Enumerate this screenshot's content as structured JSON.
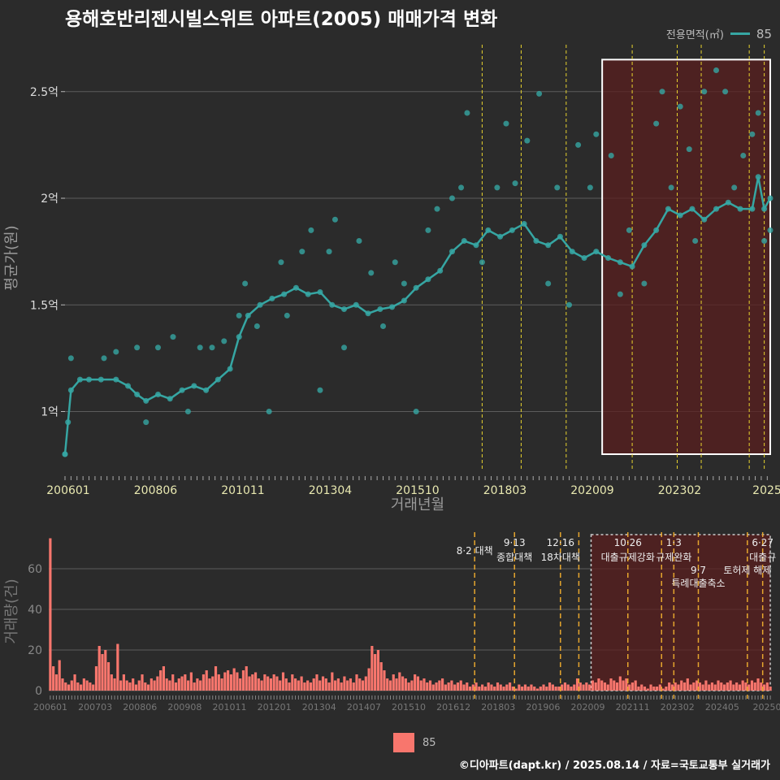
{
  "title": "용해호반리젠시빌스위트 아파트(2005) 매매가격 변화",
  "legend_top": {
    "label": "전용면적(㎡)",
    "value": "85"
  },
  "legend_bottom": {
    "value": "85"
  },
  "footer": "©디아파트(dapt.kr) / 2025.08.14 / 자료=국토교통부 실거래가",
  "colors": {
    "price": "#36a6a3",
    "volume": "#f8766d",
    "highlight": "#5a1f1f",
    "policy_line": "#e6d22e",
    "policy_line_bottom": "#e6a62e"
  },
  "chart_data": [
    {
      "type": "line",
      "title": "",
      "xlabel": "거래년월",
      "ylabel": "평균가(원)",
      "x_tick_labels": [
        "200601",
        "200806",
        "201011",
        "201304",
        "201510",
        "201803",
        "202009",
        "202302",
        "2025"
      ],
      "y_ticks": [
        {
          "v": 1.0,
          "label": "1억"
        },
        {
          "v": 1.5,
          "label": "1.5억"
        },
        {
          "v": 2.0,
          "label": "2억"
        },
        {
          "v": 2.5,
          "label": "2.5억"
        }
      ],
      "ylim": [
        0.72,
        2.72
      ],
      "x_range": [
        "2006-01",
        "2025-08"
      ],
      "highlight_range": {
        "from": "2020-12",
        "to": "2025-08",
        "ylim": [
          0.8,
          2.65
        ]
      },
      "policy_lines": [
        "2017-08",
        "2018-09",
        "2019-12",
        "2021-10",
        "2023-01",
        "2023-09",
        "2025-01",
        "2025-06"
      ],
      "series": [
        {
          "name": "85",
          "points": [
            [
              "2006-01",
              0.8
            ],
            [
              "2006-02",
              0.95
            ],
            [
              "2006-03",
              1.1
            ],
            [
              "2006-06",
              1.15
            ],
            [
              "2006-09",
              1.15
            ],
            [
              "2007-01",
              1.15
            ],
            [
              "2007-06",
              1.15
            ],
            [
              "2007-10",
              1.12
            ],
            [
              "2008-01",
              1.08
            ],
            [
              "2008-04",
              1.05
            ],
            [
              "2008-08",
              1.08
            ],
            [
              "2008-12",
              1.06
            ],
            [
              "2009-04",
              1.1
            ],
            [
              "2009-08",
              1.12
            ],
            [
              "2009-12",
              1.1
            ],
            [
              "2010-04",
              1.15
            ],
            [
              "2010-08",
              1.2
            ],
            [
              "2010-11",
              1.35
            ],
            [
              "2011-02",
              1.45
            ],
            [
              "2011-06",
              1.5
            ],
            [
              "2011-10",
              1.53
            ],
            [
              "2012-02",
              1.55
            ],
            [
              "2012-06",
              1.58
            ],
            [
              "2012-10",
              1.55
            ],
            [
              "2013-02",
              1.56
            ],
            [
              "2013-06",
              1.5
            ],
            [
              "2013-10",
              1.48
            ],
            [
              "2014-02",
              1.5
            ],
            [
              "2014-06",
              1.46
            ],
            [
              "2014-10",
              1.48
            ],
            [
              "2015-02",
              1.49
            ],
            [
              "2015-06",
              1.52
            ],
            [
              "2015-10",
              1.58
            ],
            [
              "2016-02",
              1.62
            ],
            [
              "2016-06",
              1.66
            ],
            [
              "2016-10",
              1.75
            ],
            [
              "2017-02",
              1.8
            ],
            [
              "2017-06",
              1.78
            ],
            [
              "2017-10",
              1.85
            ],
            [
              "2018-02",
              1.82
            ],
            [
              "2018-06",
              1.85
            ],
            [
              "2018-10",
              1.88
            ],
            [
              "2019-02",
              1.8
            ],
            [
              "2019-06",
              1.78
            ],
            [
              "2019-10",
              1.82
            ],
            [
              "2020-02",
              1.75
            ],
            [
              "2020-06",
              1.72
            ],
            [
              "2020-10",
              1.75
            ],
            [
              "2021-02",
              1.72
            ],
            [
              "2021-06",
              1.7
            ],
            [
              "2021-10",
              1.68
            ],
            [
              "2022-02",
              1.78
            ],
            [
              "2022-06",
              1.85
            ],
            [
              "2022-10",
              1.95
            ],
            [
              "2023-02",
              1.92
            ],
            [
              "2023-06",
              1.95
            ],
            [
              "2023-10",
              1.9
            ],
            [
              "2024-02",
              1.95
            ],
            [
              "2024-06",
              1.98
            ],
            [
              "2024-10",
              1.95
            ],
            [
              "2025-02",
              1.95
            ],
            [
              "2025-04",
              2.1
            ],
            [
              "2025-06",
              1.95
            ],
            [
              "2025-08",
              2.0
            ]
          ],
          "scatter_points": [
            [
              "2006-01",
              0.8
            ],
            [
              "2006-03",
              1.25
            ],
            [
              "2007-02",
              1.25
            ],
            [
              "2007-06",
              1.28
            ],
            [
              "2008-01",
              1.3
            ],
            [
              "2008-04",
              0.95
            ],
            [
              "2008-08",
              1.3
            ],
            [
              "2009-01",
              1.35
            ],
            [
              "2009-06",
              1.0
            ],
            [
              "2009-10",
              1.3
            ],
            [
              "2010-02",
              1.3
            ],
            [
              "2010-06",
              1.33
            ],
            [
              "2010-11",
              1.45
            ],
            [
              "2011-01",
              1.6
            ],
            [
              "2011-05",
              1.4
            ],
            [
              "2011-09",
              1.0
            ],
            [
              "2012-01",
              1.7
            ],
            [
              "2012-03",
              1.45
            ],
            [
              "2012-08",
              1.75
            ],
            [
              "2012-11",
              1.85
            ],
            [
              "2013-02",
              1.1
            ],
            [
              "2013-05",
              1.75
            ],
            [
              "2013-07",
              1.9
            ],
            [
              "2013-10",
              1.3
            ],
            [
              "2014-03",
              1.8
            ],
            [
              "2014-07",
              1.65
            ],
            [
              "2014-11",
              1.4
            ],
            [
              "2015-03",
              1.7
            ],
            [
              "2015-06",
              1.6
            ],
            [
              "2015-10",
              1.0
            ],
            [
              "2016-02",
              1.85
            ],
            [
              "2016-05",
              1.95
            ],
            [
              "2016-10",
              2.0
            ],
            [
              "2017-01",
              2.05
            ],
            [
              "2017-03",
              2.4
            ],
            [
              "2017-08",
              1.7
            ],
            [
              "2018-01",
              2.05
            ],
            [
              "2018-04",
              2.35
            ],
            [
              "2018-07",
              2.07
            ],
            [
              "2018-11",
              2.27
            ],
            [
              "2019-03",
              2.49
            ],
            [
              "2019-06",
              1.6
            ],
            [
              "2019-09",
              2.05
            ],
            [
              "2020-01",
              1.5
            ],
            [
              "2020-04",
              2.25
            ],
            [
              "2020-08",
              2.05
            ],
            [
              "2020-10",
              2.3
            ],
            [
              "2021-03",
              2.2
            ],
            [
              "2021-06",
              1.55
            ],
            [
              "2021-09",
              1.85
            ],
            [
              "2022-02",
              1.6
            ],
            [
              "2022-06",
              2.35
            ],
            [
              "2022-08",
              2.5
            ],
            [
              "2022-11",
              2.05
            ],
            [
              "2023-02",
              2.43
            ],
            [
              "2023-05",
              2.23
            ],
            [
              "2023-07",
              1.8
            ],
            [
              "2023-10",
              2.5
            ],
            [
              "2024-02",
              2.6
            ],
            [
              "2024-05",
              2.5
            ],
            [
              "2024-08",
              2.05
            ],
            [
              "2024-11",
              2.2
            ],
            [
              "2025-02",
              2.3
            ],
            [
              "2025-04",
              2.4
            ],
            [
              "2025-06",
              1.8
            ],
            [
              "2025-08",
              1.85
            ]
          ]
        }
      ]
    },
    {
      "type": "bar",
      "title": "",
      "xlabel": "",
      "ylabel": "거래량(건)",
      "x_tick_labels": [
        "200601",
        "200703",
        "200806",
        "200908",
        "201011",
        "201201",
        "201304",
        "201407",
        "201510",
        "201612",
        "201803",
        "201906",
        "202009",
        "202111",
        "202302",
        "202405",
        "20250"
      ],
      "y_ticks": [
        0,
        20,
        40,
        60
      ],
      "ylim": [
        0,
        78
      ],
      "x_range": [
        "2006-01",
        "2025-08"
      ],
      "highlight_range": {
        "from": "2020-10",
        "to": "2025-08"
      },
      "policy_lines": [
        "2017-08",
        "2018-09",
        "2019-12",
        "2020-06",
        "2021-10",
        "2022-09",
        "2023-01",
        "2023-09",
        "2025-01",
        "2025-06"
      ],
      "policy_labels": [
        {
          "at": "2017-08",
          "lines": [
            "8·2 대책"
          ],
          "row": 0
        },
        {
          "at": "2018-09",
          "lines": [
            "9·13",
            "종합대책"
          ],
          "row": 0
        },
        {
          "at": "2019-12",
          "lines": [
            "12·16",
            "18차대책"
          ],
          "row": 0
        },
        {
          "at": "2021-10",
          "lines": [
            "10·26",
            "대출규제강화"
          ],
          "row": 0
        },
        {
          "at": "2023-01",
          "lines": [
            "1·3",
            "규제완화"
          ],
          "row": 0
        },
        {
          "at": "2023-09",
          "lines": [
            "9·7",
            "특례대출축소"
          ],
          "row": 1
        },
        {
          "at": "2025-01",
          "lines": [
            "토허제 해제"
          ],
          "row": 2
        },
        {
          "at": "2025-06",
          "lines": [
            "6·27",
            "대출규"
          ],
          "row": 0
        }
      ],
      "series": [
        {
          "name": "85",
          "values_by_month": {
            "2006": [
              75,
              12,
              8,
              15,
              6,
              4,
              3,
              5,
              8,
              4,
              3,
              6
            ],
            "2007": [
              5,
              4,
              3,
              12,
              22,
              18,
              20,
              14,
              8,
              6,
              23,
              5
            ],
            "2008": [
              8,
              5,
              4,
              6,
              3,
              5,
              8,
              4,
              3,
              6,
              5,
              7
            ],
            "2009": [
              10,
              12,
              6,
              5,
              8,
              4,
              6,
              7,
              8,
              5,
              9,
              4
            ],
            "2010": [
              6,
              5,
              8,
              10,
              6,
              7,
              12,
              8,
              6,
              9,
              10,
              8
            ],
            "2011": [
              11,
              9,
              6,
              10,
              12,
              7,
              8,
              9,
              6,
              5,
              8,
              7
            ],
            "2012": [
              6,
              8,
              7,
              5,
              9,
              6,
              4,
              8,
              6,
              5,
              7,
              4
            ],
            "2013": [
              5,
              4,
              6,
              8,
              5,
              7,
              6,
              4,
              9,
              5,
              6,
              4
            ],
            "2014": [
              7,
              5,
              6,
              4,
              8,
              6,
              5,
              7,
              11,
              22,
              18,
              20
            ],
            "2015": [
              14,
              10,
              6,
              5,
              8,
              6,
              9,
              7,
              6,
              4,
              5,
              8
            ],
            "2016": [
              7,
              5,
              6,
              4,
              5,
              3,
              4,
              5,
              6,
              3,
              4,
              5
            ],
            "2017": [
              3,
              4,
              5,
              3,
              4,
              2,
              3,
              4,
              2,
              3,
              2,
              4
            ],
            "2018": [
              3,
              2,
              4,
              3,
              2,
              3,
              4,
              2,
              1,
              3,
              2,
              3
            ],
            "2019": [
              2,
              3,
              2,
              1,
              2,
              3,
              2,
              4,
              3,
              2,
              2,
              3
            ],
            "2020": [
              4,
              3,
              2,
              3,
              6,
              4,
              3,
              4,
              3,
              5,
              4,
              6
            ],
            "2021": [
              5,
              4,
              3,
              6,
              5,
              4,
              7,
              5,
              6,
              3,
              4,
              5
            ],
            "2022": [
              2,
              3,
              2,
              1,
              3,
              2,
              2,
              3,
              1,
              2,
              4,
              3
            ],
            "2023": [
              4,
              3,
              5,
              4,
              6,
              3,
              4,
              5,
              4,
              3,
              5,
              3
            ],
            "2024": [
              4,
              3,
              5,
              4,
              3,
              4,
              5,
              3,
              4,
              3,
              5,
              4
            ],
            "2025": [
              3,
              5,
              4,
              6,
              4,
              3,
              4,
              2
            ]
          }
        }
      ]
    }
  ]
}
